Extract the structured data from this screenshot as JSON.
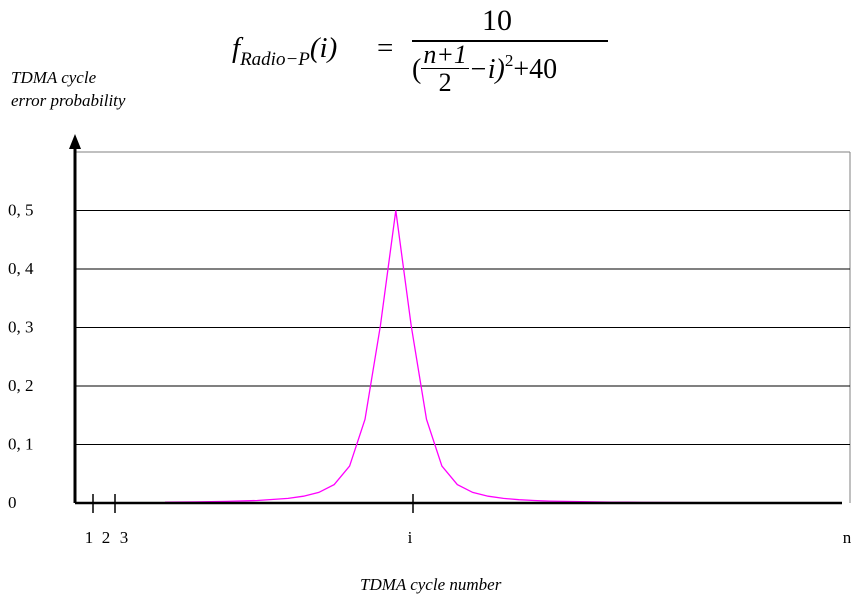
{
  "formula": {
    "lhs_f": "f",
    "lhs_sub": "Radio−P",
    "lhs_arg": "(i)",
    "equals": "=",
    "numerator": "10",
    "frac_num": "n+1",
    "frac_den": "2",
    "rest": "−i)",
    "exponent": "2",
    "tail": "+40",
    "open_paren": "("
  },
  "chart_data": {
    "type": "line",
    "ylabel": [
      "TDMA cycle",
      "error probability"
    ],
    "xlabel": "TDMA cycle number",
    "ylim": [
      0,
      0.6
    ],
    "y_ticks": [
      {
        "value": 0,
        "label": "0"
      },
      {
        "value": 0.1,
        "label": "0, 1"
      },
      {
        "value": 0.2,
        "label": "0, 2"
      },
      {
        "value": 0.3,
        "label": "0, 3"
      },
      {
        "value": 0.4,
        "label": "0, 4"
      },
      {
        "value": 0.5,
        "label": "0, 5"
      }
    ],
    "x_ticks": [
      "1",
      "2",
      "3",
      "i",
      "n"
    ],
    "grid": "horizontal",
    "line_color": "#ff00ff",
    "series": [
      {
        "x": [
          1,
          3,
          5,
          7,
          9,
          10,
          11,
          12,
          13,
          14,
          15,
          16,
          17,
          18,
          19,
          20,
          21,
          22,
          23,
          24,
          25,
          26,
          27,
          28,
          29,
          30,
          31,
          32,
          34,
          36,
          38,
          40
        ],
        "values": [
          0.0014,
          0.0018,
          0.0027,
          0.0043,
          0.0079,
          0.0116,
          0.0182,
          0.0315,
          0.063,
          0.143,
          0.303,
          0.5,
          0.303,
          0.143,
          0.063,
          0.0315,
          0.0182,
          0.0116,
          0.0079,
          0.0057,
          0.0043,
          0.0033,
          0.0027,
          0.0022,
          0.0018,
          0.0015,
          0.0013,
          0.0011,
          0.0009,
          0.0007,
          0.0006,
          0.0005
        ]
      }
    ]
  }
}
